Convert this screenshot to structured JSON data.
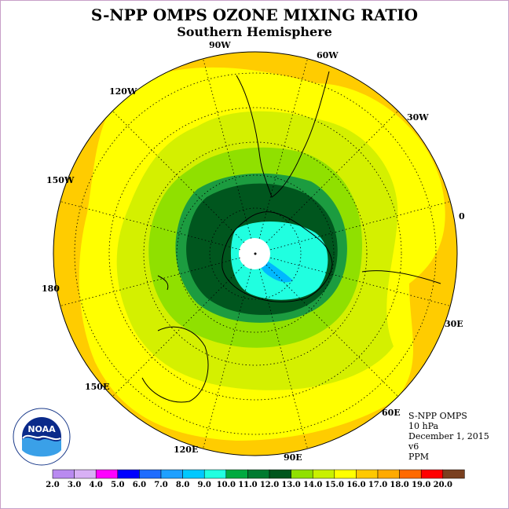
{
  "title": "S-NPP OMPS OZONE MIXING RATIO",
  "subtitle": "Southern Hemisphere",
  "longitude_labels": [
    "90W",
    "60W",
    "30W",
    "0",
    "30E",
    "60E",
    "90E",
    "120E",
    "150E",
    "180",
    "150W",
    "120W"
  ],
  "info": {
    "instrument": "S-NPP OMPS",
    "pressure": "10 hPa",
    "date": "December 1, 2015",
    "version": "v6",
    "units": "PPM"
  },
  "logo_text": "NOAA",
  "colorbar": {
    "ticks": [
      "2.0",
      "3.0",
      "4.0",
      "5.0",
      "6.0",
      "7.0",
      "8.0",
      "9.0",
      "10.0",
      "11.0",
      "12.0",
      "13.0",
      "14.0",
      "15.0",
      "16.0",
      "17.0",
      "18.0",
      "19.0",
      "20.0"
    ],
    "colors": [
      "#b98af0",
      "#d8b0f5",
      "#ff00ff",
      "#0000ff",
      "#1e6cff",
      "#1ea0ff",
      "#00c8ff",
      "#20ffe0",
      "#00aa40",
      "#007a30",
      "#00561e",
      "#90e000",
      "#c8f000",
      "#ffff00",
      "#ffc800",
      "#ffaa00",
      "#ff6a00",
      "#ff0000",
      "#7a4020"
    ]
  },
  "colors": {
    "outer_ring": "#ffcc00",
    "yellow": "#ffff00",
    "lime": "#d4f000",
    "green_light": "#90e000",
    "green_mid": "#1c9c40",
    "green_dark": "#00561e",
    "cyan": "#20ffe0",
    "blue": "#00b8ff"
  }
}
